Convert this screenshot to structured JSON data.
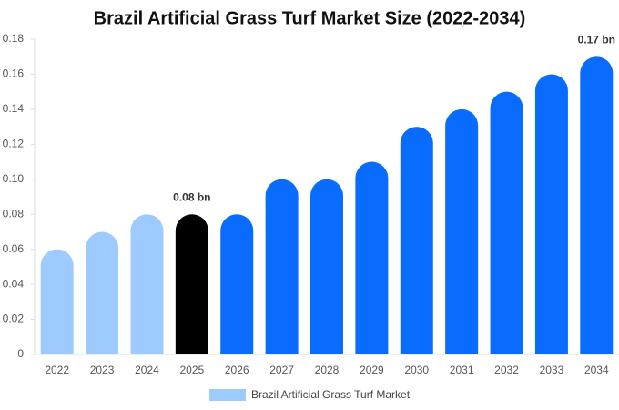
{
  "chart_data": {
    "type": "bar",
    "title": "Brazil Artificial Grass Turf Market Size (2022-2034)",
    "categories": [
      "2022",
      "2023",
      "2024",
      "2025",
      "2026",
      "2027",
      "2028",
      "2029",
      "2030",
      "2031",
      "2032",
      "2033",
      "2034"
    ],
    "series": [
      {
        "name": "Brazil Artificial Grass Turf Market",
        "color": "#9ecbff",
        "values": [
          0.06,
          0.07,
          0.08,
          0.08,
          0.08,
          0.1,
          0.1,
          0.11,
          0.13,
          0.14,
          0.15,
          0.16,
          0.17
        ],
        "colors": [
          "#9ecbff",
          "#9ecbff",
          "#9ecbff",
          "#000000",
          "#0a6cff",
          "#0a6cff",
          "#0a6cff",
          "#0a6cff",
          "#0a6cff",
          "#0a6cff",
          "#0a6cff",
          "#0a6cff",
          "#0a6cff"
        ],
        "value_labels": [
          null,
          null,
          null,
          "0.08 bn",
          null,
          null,
          null,
          null,
          null,
          null,
          null,
          null,
          "0.17 bn"
        ]
      }
    ],
    "ylim": [
      0,
      0.18
    ],
    "yticks": [
      0,
      0.02,
      0.04,
      0.06,
      0.08,
      {
        "value": 0.1,
        "label": "0.10"
      },
      0.12,
      0.14,
      0.16,
      0.18
    ],
    "grid": false
  }
}
